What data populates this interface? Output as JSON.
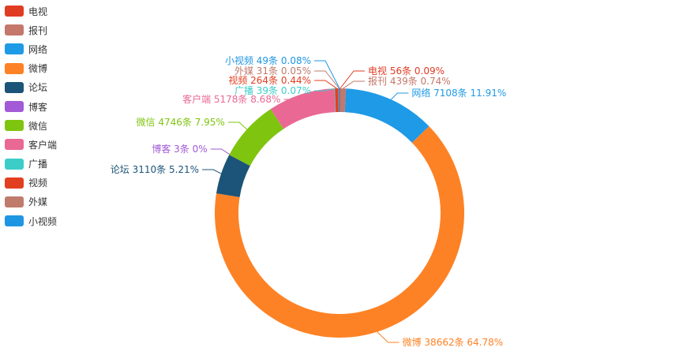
{
  "chart_data": {
    "type": "pie",
    "style": "donut",
    "unit": "条",
    "legend_placement": "left",
    "series": [
      {
        "name": "电视",
        "value": 56,
        "percent": "0.09%",
        "color": "#e03c23"
      },
      {
        "name": "报刊",
        "value": 439,
        "percent": "0.74%",
        "color": "#c4776a"
      },
      {
        "name": "网络",
        "value": 7108,
        "percent": "11.91%",
        "color": "#1f9ae6"
      },
      {
        "name": "微博",
        "value": 38662,
        "percent": "64.78%",
        "color": "#fd8225"
      },
      {
        "name": "论坛",
        "value": 3110,
        "percent": "5.21%",
        "color": "#1b5478"
      },
      {
        "name": "博客",
        "value": 3,
        "percent": "0%",
        "color": "#a25ad6"
      },
      {
        "name": "微信",
        "value": 4746,
        "percent": "7.95%",
        "color": "#7fc50f"
      },
      {
        "name": "客户端",
        "value": 5178,
        "percent": "8.68%",
        "color": "#ea6894"
      },
      {
        "name": "广播",
        "value": 39,
        "percent": "0.07%",
        "color": "#3dcdc9"
      },
      {
        "name": "视频",
        "value": 264,
        "percent": "0.44%",
        "color": "#e23f20"
      },
      {
        "name": "外媒",
        "value": 31,
        "percent": "0.05%",
        "color": "#bf7b6c"
      },
      {
        "name": "小视频",
        "value": 49,
        "percent": "0.08%",
        "color": "#1e96e2"
      }
    ]
  }
}
